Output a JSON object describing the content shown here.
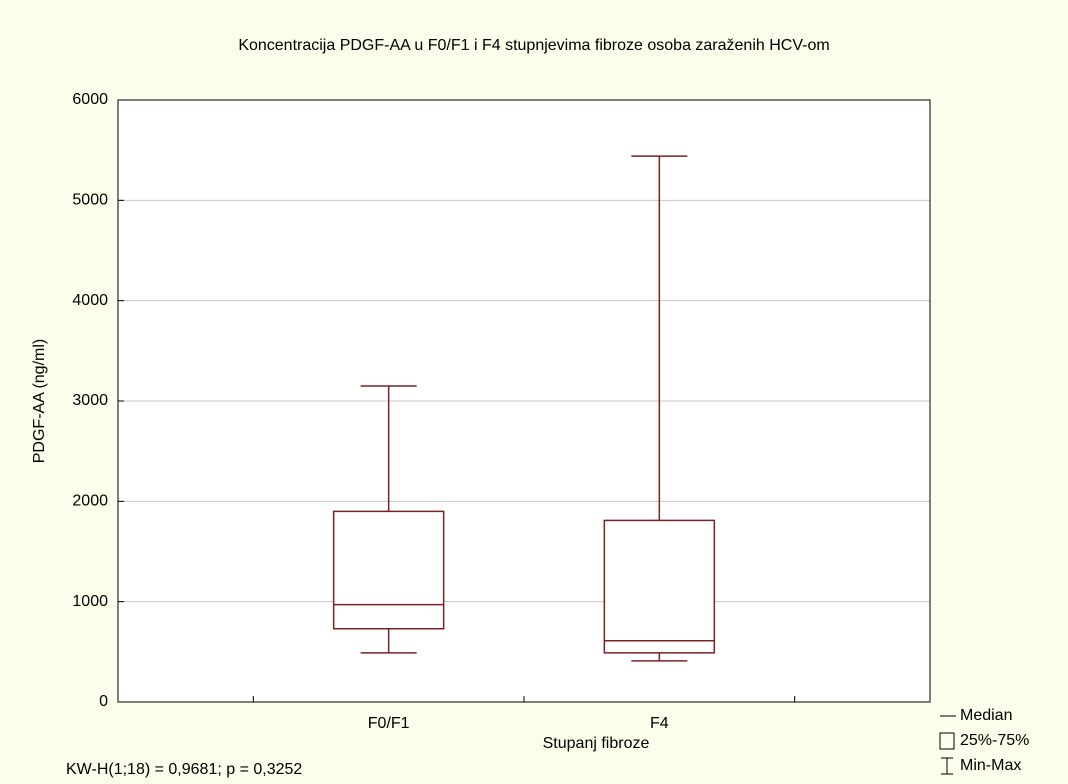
{
  "chart_data": {
    "type": "box",
    "title": "Koncentracija PDGF-AA u F0/F1 i F4 stupnjevima fibroze osoba zaraženih HCV-om",
    "x_label": "Stupanj fibroze",
    "y_label": "PDGF-AA (ng/ml)",
    "annotation": "KW-H(1;18) = 0,9681; p = 0,3252",
    "categories": [
      "F0/F1",
      "F4"
    ],
    "min": [
      490,
      410
    ],
    "q1": [
      730,
      490
    ],
    "median": [
      970,
      610
    ],
    "q3": [
      1900,
      1810
    ],
    "max": [
      3150,
      5440
    ],
    "color": "#7a2323",
    "ylim": [
      0,
      6000
    ],
    "yticks": [
      0,
      1000,
      2000,
      3000,
      4000,
      5000,
      6000
    ],
    "grid": true,
    "legend": [
      "Median",
      "25%-75%",
      "Min-Max"
    ]
  }
}
